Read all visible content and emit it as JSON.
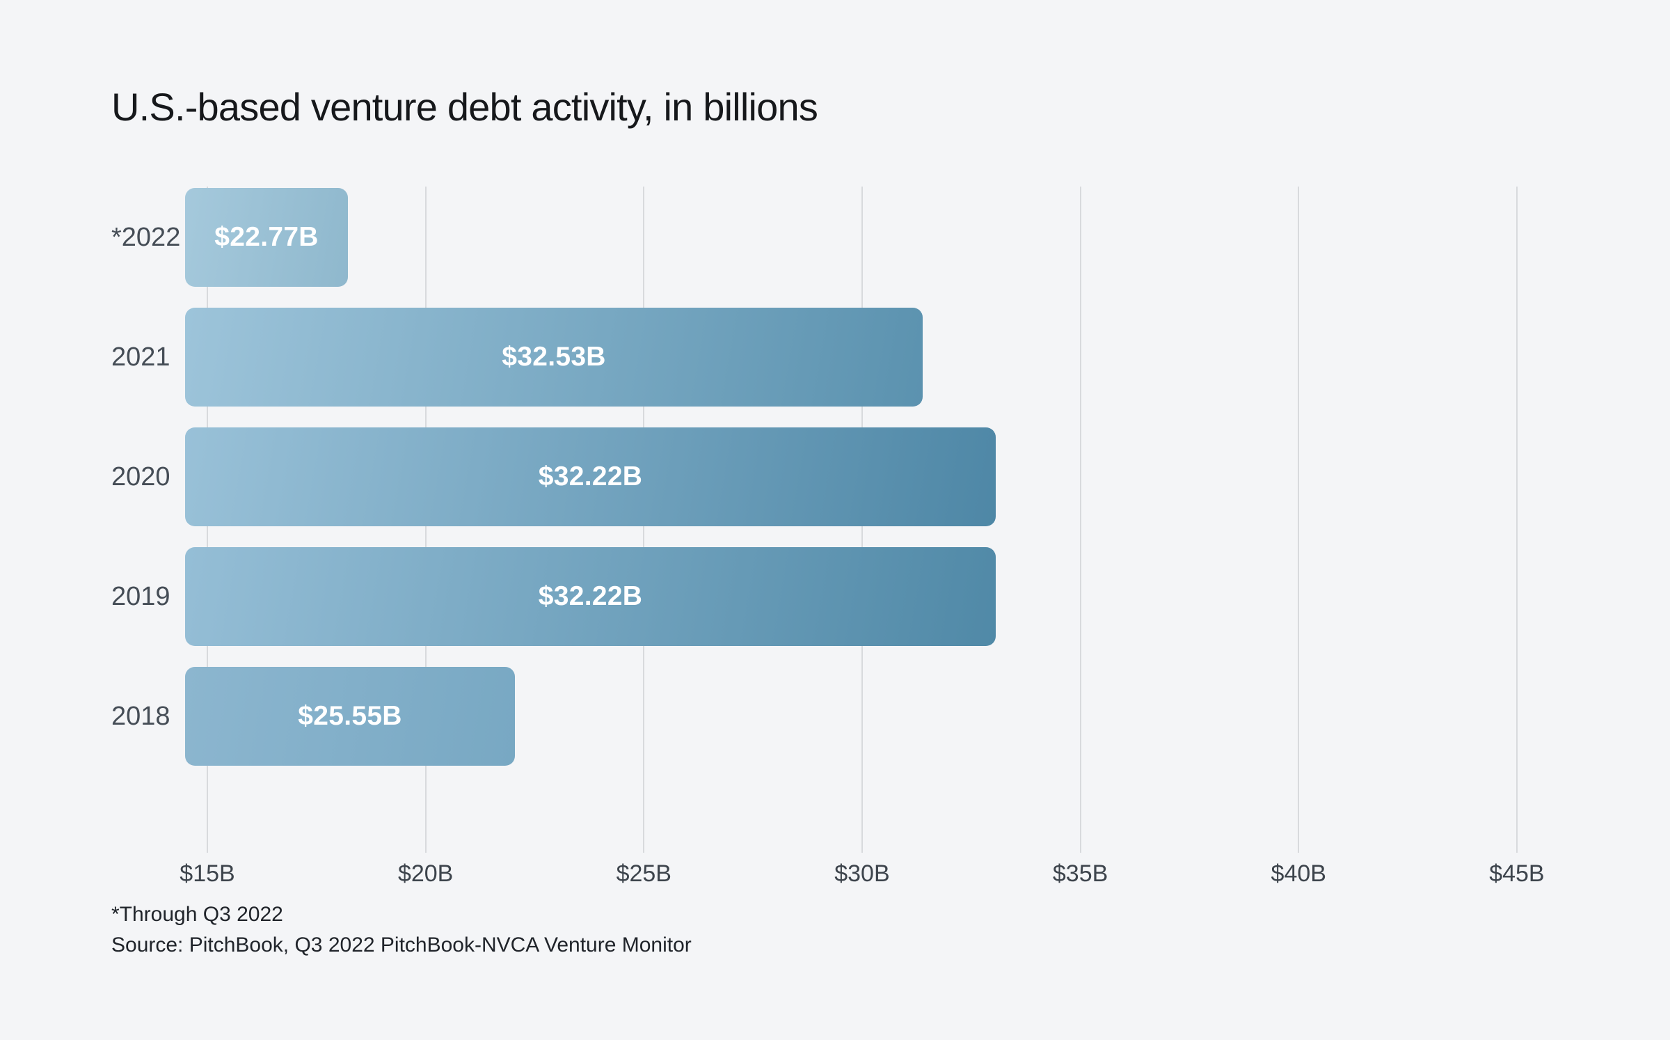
{
  "title": "U.S.-based venture debt activity, in billions",
  "footnotes": {
    "asterisk_note": "*Through Q3 2022",
    "source_note": "Source: PitchBook, Q3 2022 PitchBook-NVCA Venture Monitor"
  },
  "colors": {
    "background": "#f4f5f7",
    "title_text": "#16181b",
    "year_label_text": "#454d56",
    "tick_label_text": "#3d444c",
    "footnote_text": "#20242a",
    "bar_value_text": "#ffffff",
    "gridline": "#d8dadd"
  },
  "chart_data": {
    "type": "bar",
    "orientation": "horizontal",
    "title": "U.S.-based venture debt activity, in billions",
    "unit": "USD billions",
    "grid": true,
    "categories": [
      "*2022",
      "2021",
      "2020",
      "2019",
      "2018"
    ],
    "values": [
      22.77,
      32.53,
      32.22,
      32.22,
      25.55
    ],
    "value_labels": [
      "$22.77B",
      "$32.53B",
      "$32.22B",
      "$32.22B",
      "$25.55B"
    ],
    "x_ticks": [
      {
        "value": 15,
        "label": "$15B"
      },
      {
        "value": 20,
        "label": "$20B"
      },
      {
        "value": 25,
        "label": "$25B"
      },
      {
        "value": 30,
        "label": "$30B"
      },
      {
        "value": 35,
        "label": "$35B"
      },
      {
        "value": 40,
        "label": "$40B"
      },
      {
        "value": 45,
        "label": "$45B"
      }
    ],
    "axis": {
      "min": 14.49,
      "max": 45.0,
      "tick_step": 5
    },
    "bars": [
      {
        "category": "*2022",
        "value": 22.77,
        "label": "$22.77B",
        "visual_end": 18.22,
        "gradient": [
          "#a5c9dc",
          "#8fb8cd"
        ]
      },
      {
        "category": "2021",
        "value": 32.53,
        "label": "$32.53B",
        "visual_end": 31.39,
        "gradient": [
          "#9dc4da",
          "#5b92af"
        ]
      },
      {
        "category": "2020",
        "value": 32.22,
        "label": "$32.22B",
        "visual_end": 33.06,
        "gradient": [
          "#99c1d8",
          "#4e87a6"
        ]
      },
      {
        "category": "2019",
        "value": 32.22,
        "label": "$32.22B",
        "visual_end": 33.06,
        "gradient": [
          "#95bed6",
          "#5089a7"
        ]
      },
      {
        "category": "2018",
        "value": 25.55,
        "label": "$25.55B",
        "visual_end": 22.05,
        "gradient": [
          "#8cb6cf",
          "#78a8c3"
        ]
      }
    ]
  }
}
